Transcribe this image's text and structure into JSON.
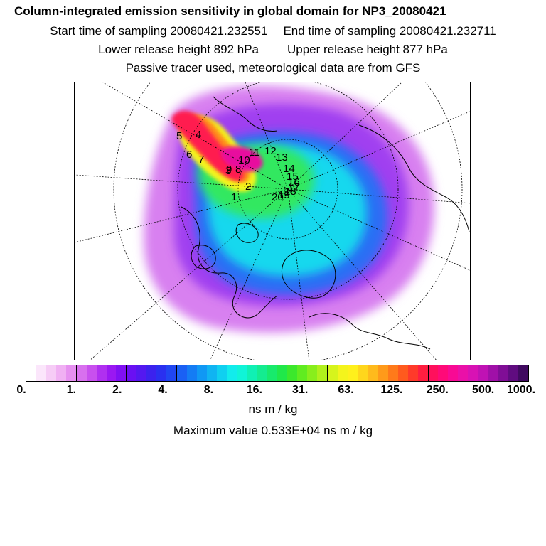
{
  "header": {
    "title": "Column-integrated emission sensitivity in global domain for NP3_20080421",
    "start_label": "Start time of sampling 20080421.232551",
    "end_label": "End time of sampling 20080421.232711",
    "lower_label": "Lower release height  892 hPa",
    "upper_label": "Upper release height  877 hPa",
    "note": "Passive tracer used, meteorological data are from GFS"
  },
  "map": {
    "projection": "north polar stereographic",
    "track_labels": [
      "1",
      "2",
      "3",
      "4",
      "5",
      "6",
      "7",
      "8",
      "9",
      "10",
      "11",
      "12",
      "13",
      "14",
      "15",
      "16",
      "17",
      "18",
      "19",
      "20"
    ]
  },
  "colorbar": {
    "tick_labels": [
      "0.",
      "1.",
      "2.",
      "4.",
      "8.",
      "16.",
      "31.",
      "63.",
      "125.",
      "250.",
      "500.",
      "1000."
    ],
    "colors": [
      "#ffffff",
      "#fbe6fb",
      "#f6ccf6",
      "#f0b0f3",
      "#e690f0",
      "#d870ee",
      "#c850ee",
      "#b030f0",
      "#9a18f2",
      "#8010f3",
      "#6a10f3",
      "#5418f0",
      "#3c22ee",
      "#2a30f0",
      "#2046f2",
      "#1a60f4",
      "#147cf4",
      "#1098f4",
      "#10b4f2",
      "#10d0f0",
      "#12ecec",
      "#10f4d8",
      "#10f0b4",
      "#14ec90",
      "#18ea6c",
      "#20e84a",
      "#3ce82c",
      "#60ec20",
      "#88ee1c",
      "#b0f01c",
      "#d6f41c",
      "#f4f41c",
      "#fff01c",
      "#ffd61c",
      "#ffba1c",
      "#ff9a1a",
      "#ff7a1a",
      "#ff5a1e",
      "#ff3a2a",
      "#ff1e40",
      "#ff105c",
      "#ff0a78",
      "#f80a94",
      "#ea10a8",
      "#d812b4",
      "#c012b4",
      "#a010a8",
      "#800e96",
      "#600c80",
      "#400a60"
    ],
    "units": "ns m / kg",
    "max_value": "Maximum value  0.533E+04 ns m / kg"
  }
}
